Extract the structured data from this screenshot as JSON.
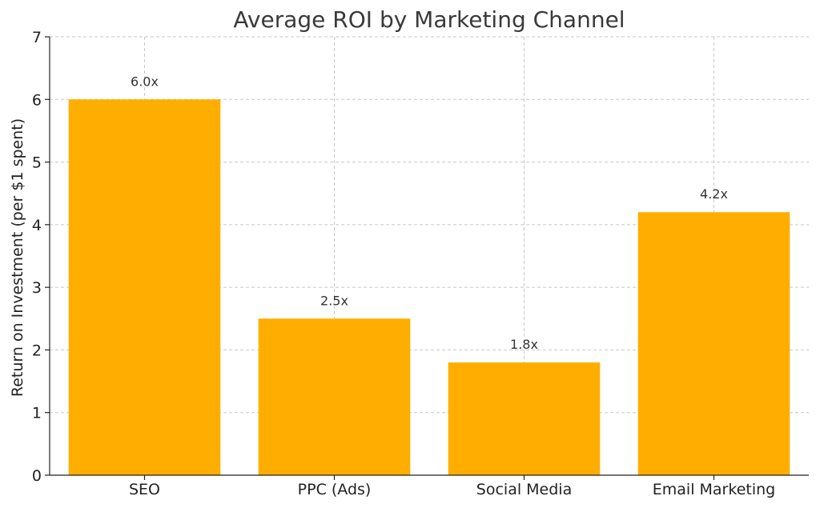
{
  "chart_data": {
    "type": "bar",
    "title": "Average ROI by Marketing Channel",
    "xlabel": "",
    "ylabel": "Return on Investment (per $1 spent)",
    "categories": [
      "SEO",
      "PPC (Ads)",
      "Social Media",
      "Email Marketing"
    ],
    "values": [
      6.0,
      2.5,
      1.8,
      4.2
    ],
    "data_labels": [
      "6.0x",
      "2.5x",
      "1.8x",
      "4.2x"
    ],
    "ylim": [
      0,
      7
    ],
    "yticks": [
      0,
      1,
      2,
      3,
      4,
      5,
      6,
      7
    ],
    "grid": true,
    "bar_color": "#FFAE00",
    "legend": null
  }
}
